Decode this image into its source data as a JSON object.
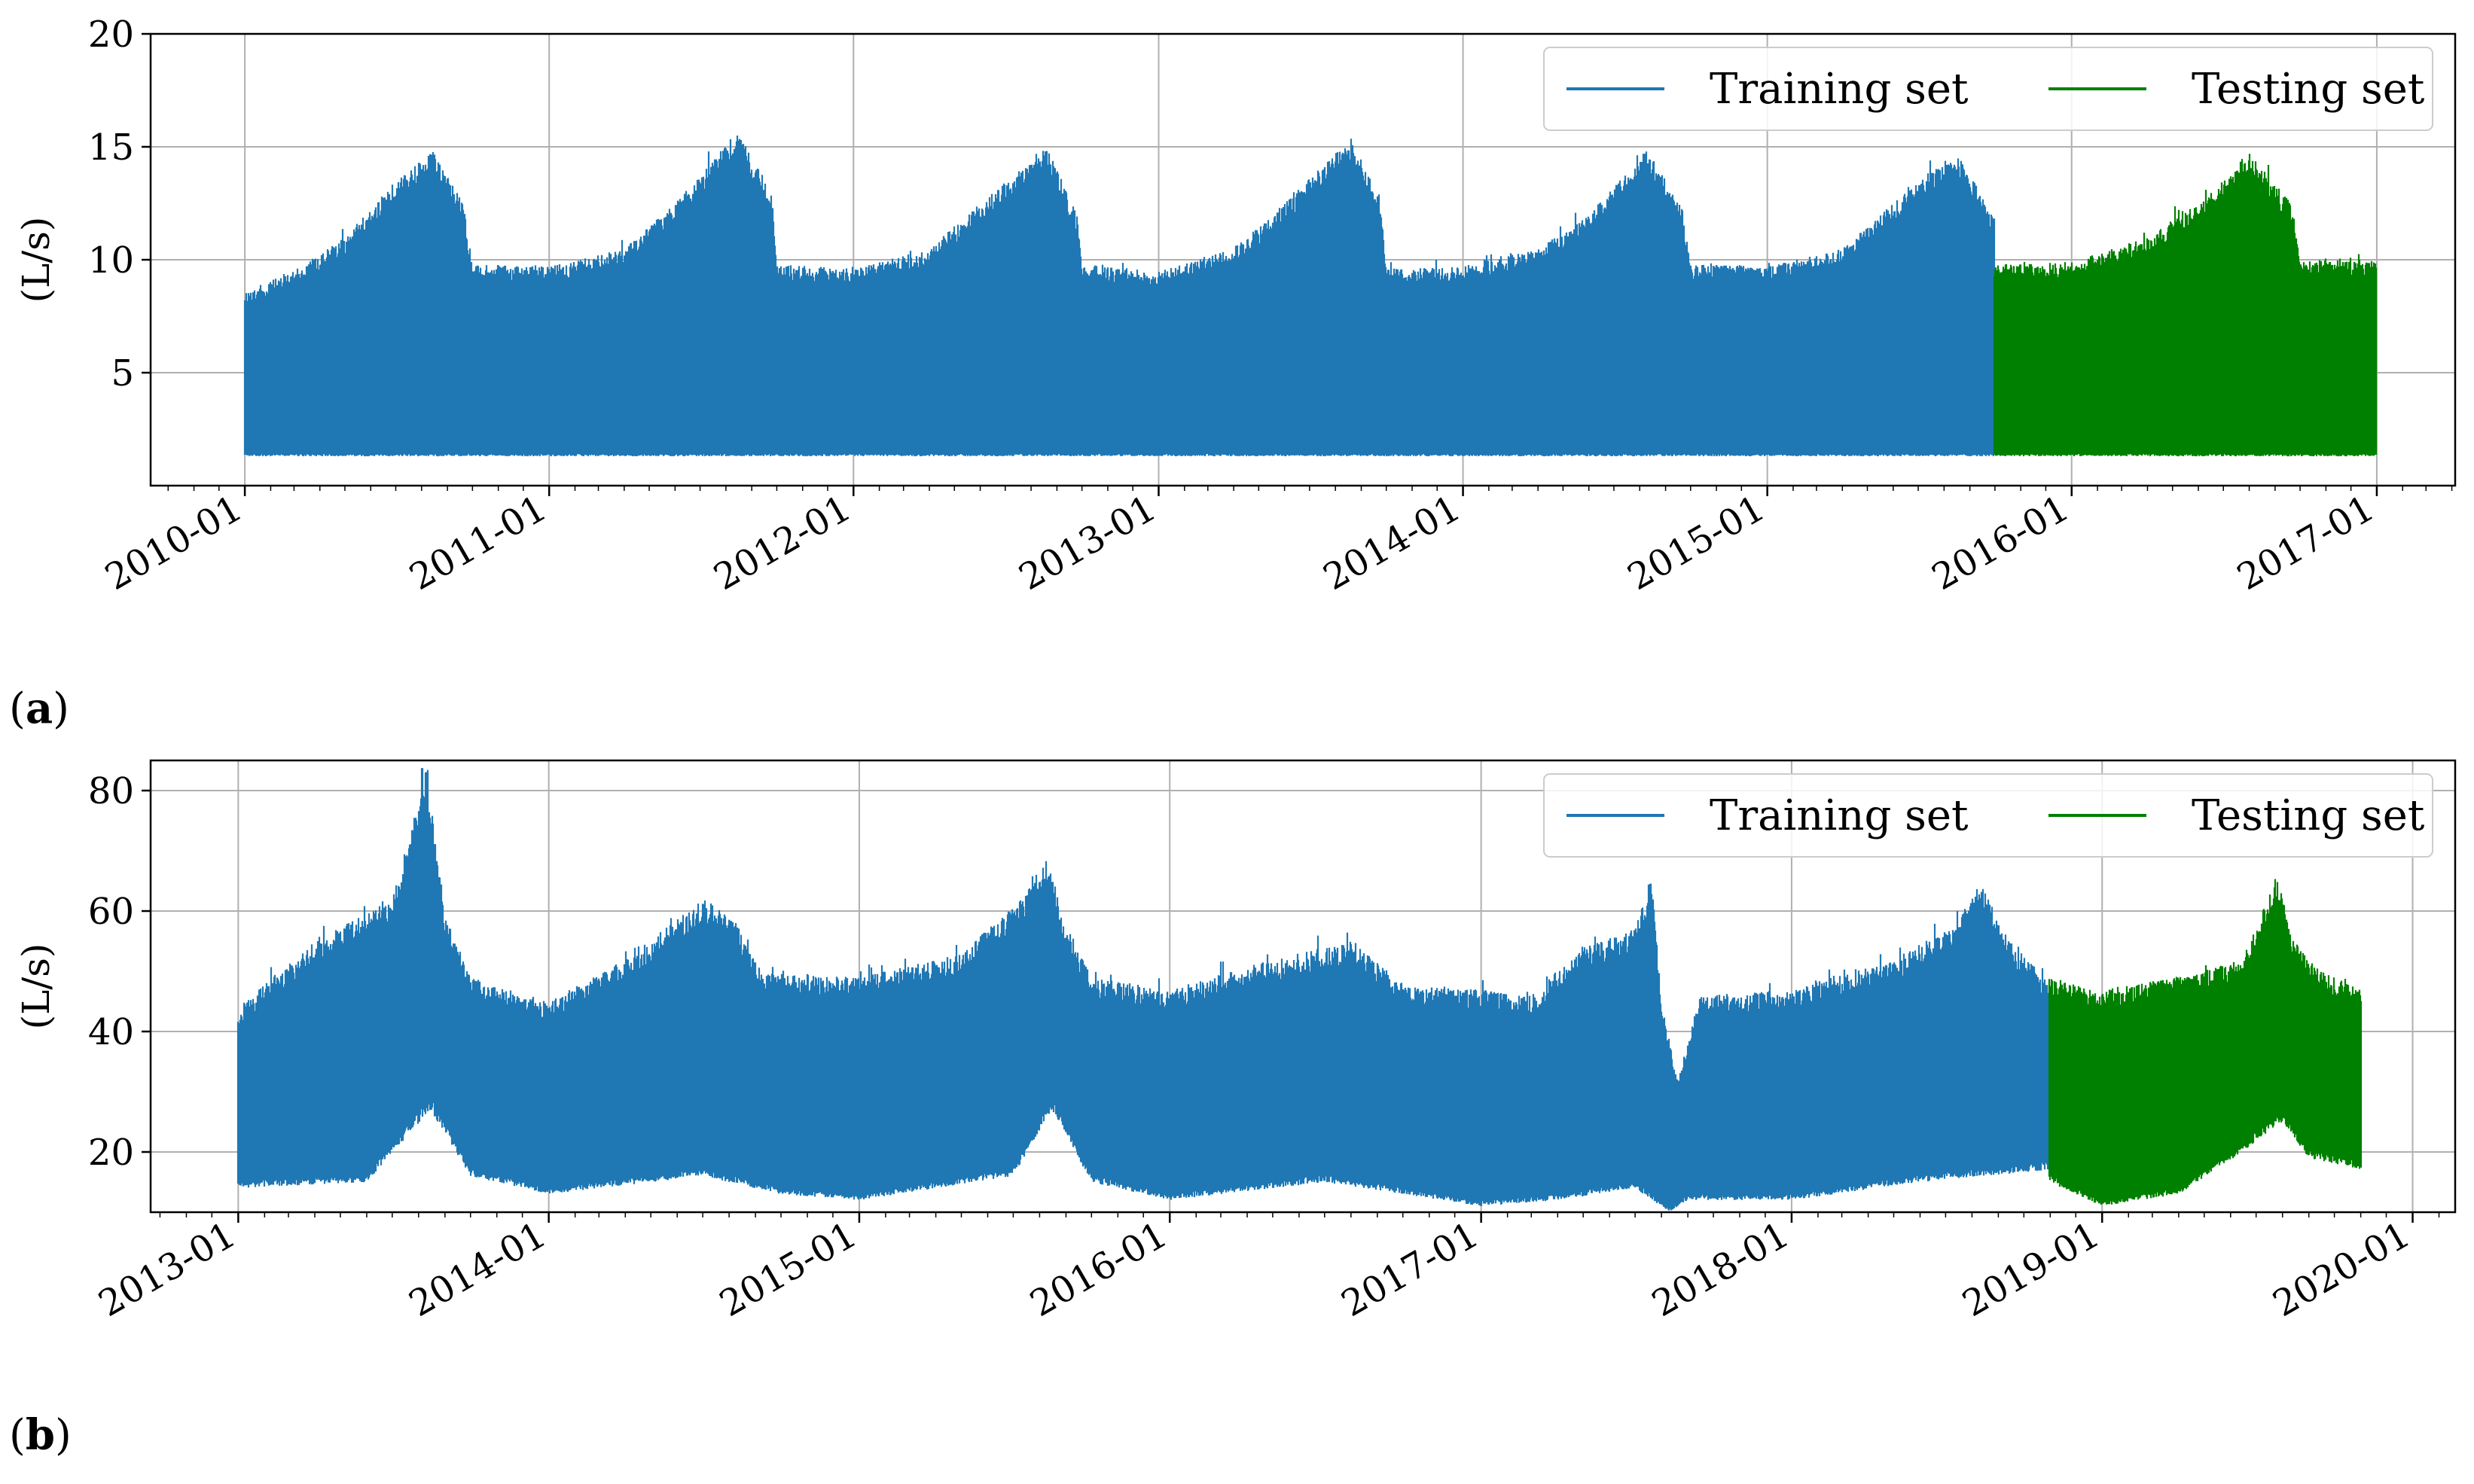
{
  "chart_data": [
    {
      "type": "line",
      "panel_label": "a",
      "ylabel": "(L/s)",
      "ylim": [
        0,
        20
      ],
      "xlim": [
        "2009-09-10",
        "2017-04-05"
      ],
      "yticks": [
        5,
        10,
        15,
        20
      ],
      "xticks": [
        "2010-01",
        "2011-01",
        "2012-01",
        "2013-01",
        "2014-01",
        "2015-01",
        "2016-01",
        "2017-01"
      ],
      "grid": true,
      "legend_position": "top-right",
      "legend_columns": 2,
      "series": [
        {
          "name": "Training set",
          "color": "#1f77b4",
          "start": "2010-01-01",
          "end": "2015-09-30",
          "lower": 1.3,
          "upper_envelope": [
            [
              "2010-01-01",
              8.6
            ],
            [
              "2010-03-01",
              9.5
            ],
            [
              "2010-05-01",
              11.0
            ],
            [
              "2010-07-01",
              13.5
            ],
            [
              "2010-08-15",
              14.8
            ],
            [
              "2010-09-20",
              12.5
            ],
            [
              "2010-10-01",
              9.8
            ],
            [
              "2011-01-01",
              9.7
            ],
            [
              "2011-04-01",
              10.5
            ],
            [
              "2011-06-01",
              12.5
            ],
            [
              "2011-08-15",
              15.7
            ],
            [
              "2011-09-25",
              13.0
            ],
            [
              "2011-10-01",
              9.8
            ],
            [
              "2012-01-01",
              9.6
            ],
            [
              "2012-04-01",
              10.5
            ],
            [
              "2012-06-01",
              12.5
            ],
            [
              "2012-08-20",
              15.0
            ],
            [
              "2012-09-25",
              12.0
            ],
            [
              "2012-10-01",
              9.8
            ],
            [
              "2013-01-01",
              9.5
            ],
            [
              "2013-04-01",
              10.5
            ],
            [
              "2013-06-01",
              12.5
            ],
            [
              "2013-08-20",
              15.4
            ],
            [
              "2013-09-25",
              12.5
            ],
            [
              "2013-10-01",
              9.6
            ],
            [
              "2014-01-01",
              9.7
            ],
            [
              "2014-04-01",
              10.5
            ],
            [
              "2014-06-01",
              12.0
            ],
            [
              "2014-08-10",
              14.9
            ],
            [
              "2014-09-20",
              12.5
            ],
            [
              "2014-10-01",
              9.8
            ],
            [
              "2015-01-01",
              9.7
            ],
            [
              "2015-04-01",
              10.5
            ],
            [
              "2015-06-01",
              12.5
            ],
            [
              "2015-08-15",
              14.8
            ],
            [
              "2015-09-30",
              12.0
            ]
          ]
        },
        {
          "name": "Testing set",
          "color": "#008000",
          "start": "2015-09-30",
          "end": "2016-12-31",
          "lower": 1.3,
          "upper_envelope": [
            [
              "2015-09-30",
              9.8
            ],
            [
              "2016-01-01",
              9.9
            ],
            [
              "2016-04-01",
              11.0
            ],
            [
              "2016-06-01",
              12.5
            ],
            [
              "2016-08-01",
              14.8
            ],
            [
              "2016-09-20",
              12.5
            ],
            [
              "2016-10-01",
              10.0
            ],
            [
              "2016-12-31",
              10.0
            ]
          ]
        }
      ]
    },
    {
      "type": "line",
      "panel_label": "b",
      "ylabel": "(L/s)",
      "ylim": [
        10,
        85
      ],
      "xlim": [
        "2012-09-20",
        "2020-02-20"
      ],
      "yticks": [
        20,
        40,
        60,
        80
      ],
      "xticks": [
        "2013-01",
        "2014-01",
        "2015-01",
        "2016-01",
        "2017-01",
        "2018-01",
        "2019-01",
        "2020-01"
      ],
      "grid": true,
      "legend_position": "top-right",
      "legend_columns": 2,
      "series": [
        {
          "name": "Training set",
          "color": "#1f77b4",
          "start": "2013-01-01",
          "end": "2018-10-31",
          "lower_envelope": [
            [
              "2013-01-01",
              14
            ],
            [
              "2013-06-01",
              15
            ],
            [
              "2013-08-15",
              27
            ],
            [
              "2013-10-01",
              16
            ],
            [
              "2014-01-01",
              13
            ],
            [
              "2014-07-01",
              16
            ],
            [
              "2014-10-01",
              13
            ],
            [
              "2015-01-01",
              12
            ],
            [
              "2015-07-01",
              16
            ],
            [
              "2015-08-15",
              27
            ],
            [
              "2015-10-01",
              15
            ],
            [
              "2016-01-01",
              12
            ],
            [
              "2016-07-01",
              15
            ],
            [
              "2016-10-01",
              13
            ],
            [
              "2017-01-01",
              11
            ],
            [
              "2017-04-01",
              12
            ],
            [
              "2017-07-01",
              14
            ],
            [
              "2017-08-10",
              10
            ],
            [
              "2017-09-01",
              12
            ],
            [
              "2018-01-01",
              12
            ],
            [
              "2018-06-01",
              15
            ],
            [
              "2018-10-31",
              17
            ]
          ],
          "upper_envelope": [
            [
              "2013-01-01",
              44
            ],
            [
              "2013-04-01",
              55
            ],
            [
              "2013-07-01",
              62
            ],
            [
              "2013-08-10",
              83.5
            ],
            [
              "2013-09-01",
              60
            ],
            [
              "2013-10-01",
              49
            ],
            [
              "2014-01-01",
              45
            ],
            [
              "2014-04-01",
              52
            ],
            [
              "2014-07-01",
              62
            ],
            [
              "2014-08-01",
              60
            ],
            [
              "2014-09-10",
              50
            ],
            [
              "2015-01-01",
              49
            ],
            [
              "2015-05-01",
              53
            ],
            [
              "2015-07-15",
              63
            ],
            [
              "2015-08-10",
              69
            ],
            [
              "2015-09-01",
              58
            ],
            [
              "2015-10-01",
              49
            ],
            [
              "2016-01-01",
              47
            ],
            [
              "2016-05-01",
              52
            ],
            [
              "2016-08-01",
              55
            ],
            [
              "2016-10-01",
              48
            ],
            [
              "2017-01-01",
              47
            ],
            [
              "2017-03-01",
              46
            ],
            [
              "2017-05-01",
              54
            ],
            [
              "2017-07-01",
              57
            ],
            [
              "2017-07-20",
              66
            ],
            [
              "2017-08-01",
              45
            ],
            [
              "2017-08-20",
              32
            ],
            [
              "2017-09-15",
              46
            ],
            [
              "2018-01-01",
              47
            ],
            [
              "2018-05-01",
              52
            ],
            [
              "2018-07-15",
              58
            ],
            [
              "2018-08-10",
              65
            ],
            [
              "2018-09-10",
              56
            ],
            [
              "2018-10-31",
              48
            ]
          ]
        },
        {
          "name": "Testing set",
          "color": "#008000",
          "start": "2018-10-31",
          "end": "2019-11-01",
          "lower_envelope": [
            [
              "2018-10-31",
              15
            ],
            [
              "2019-01-01",
              11
            ],
            [
              "2019-04-01",
              13
            ],
            [
              "2019-06-15",
              20
            ],
            [
              "2019-08-01",
              25
            ],
            [
              "2019-09-01",
              19
            ],
            [
              "2019-11-01",
              17
            ]
          ],
          "upper_envelope": [
            [
              "2018-10-31",
              49
            ],
            [
              "2019-01-01",
              47
            ],
            [
              "2019-04-01",
              49
            ],
            [
              "2019-06-15",
              52
            ],
            [
              "2019-07-25",
              66
            ],
            [
              "2019-08-15",
              55
            ],
            [
              "2019-09-15",
              50
            ],
            [
              "2019-11-01",
              47
            ]
          ]
        }
      ]
    }
  ]
}
